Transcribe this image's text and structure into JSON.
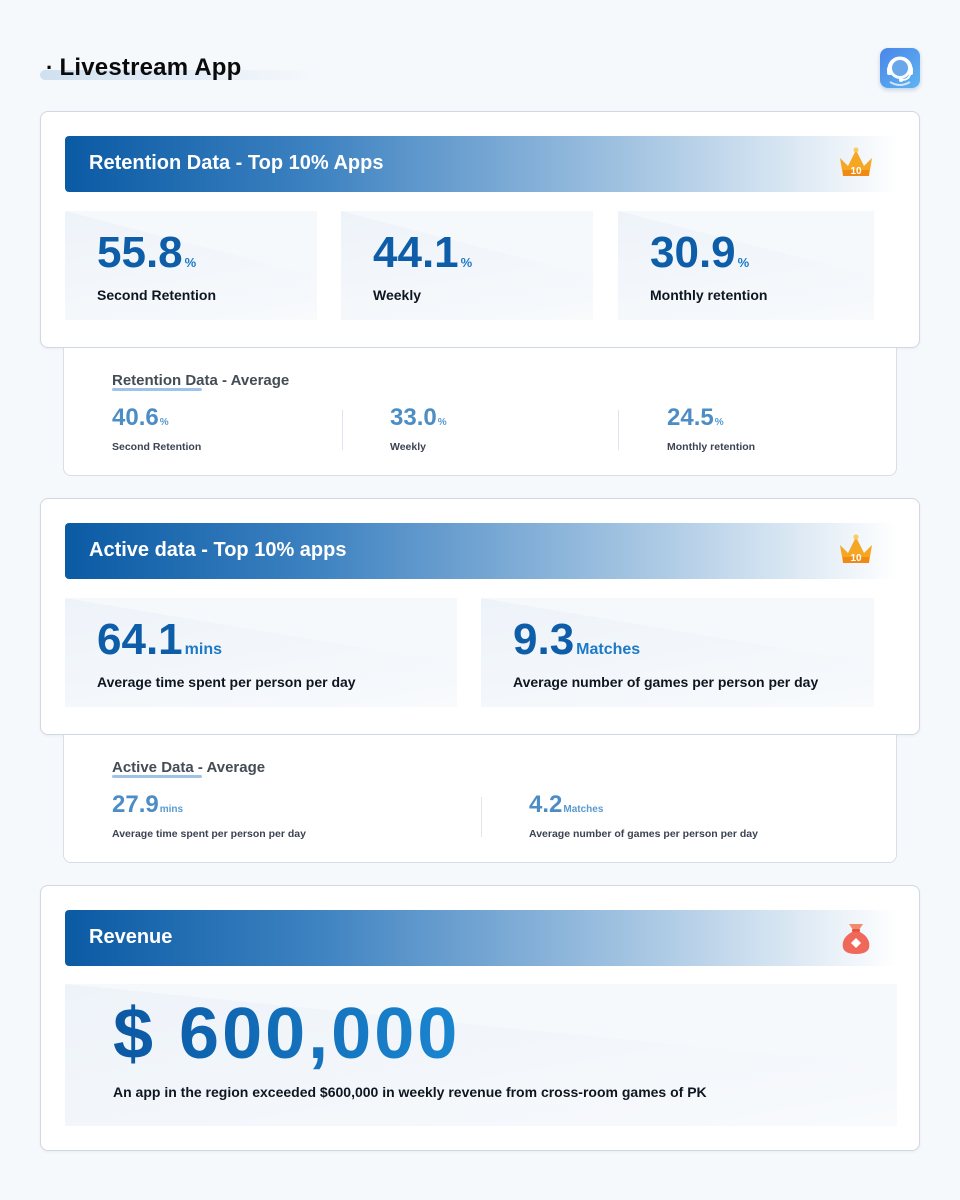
{
  "header": {
    "bullet": "·",
    "title": "Livestream App",
    "logo_icon": "headset-support-icon"
  },
  "colors": {
    "primary_blue": "#0e5da8",
    "average_blue": "#4d8dc6",
    "crown_orange": "#f5a623",
    "moneybag_red": "#f0685a"
  },
  "retention_top": {
    "title": "Retention Data - Top 10% Apps",
    "badge_icon": "crown-top10-icon",
    "badge_text": "10",
    "stats": [
      {
        "value": "55.8",
        "unit": "%",
        "label": "Second Retention"
      },
      {
        "value": "44.1",
        "unit": "%",
        "label": "Weekly"
      },
      {
        "value": "30.9",
        "unit": "%",
        "label": "Monthly retention"
      }
    ]
  },
  "retention_avg": {
    "title": "Retention Data - Average",
    "stats": [
      {
        "value": "40.6",
        "unit": "%",
        "label": "Second Retention"
      },
      {
        "value": "33.0",
        "unit": "%",
        "label": "Weekly"
      },
      {
        "value": "24.5",
        "unit": "%",
        "label": "Monthly retention"
      }
    ]
  },
  "active_top": {
    "title": "Active data - Top 10% apps",
    "badge_icon": "crown-top10-icon",
    "badge_text": "10",
    "stats": [
      {
        "value": "64.1",
        "unit": "mins",
        "label": "Average time spent per person per day"
      },
      {
        "value": "9.3",
        "unit": "Matches",
        "label": "Average number of games per person per day"
      }
    ]
  },
  "active_avg": {
    "title": "Active Data - Average",
    "stats": [
      {
        "value": "27.9",
        "unit": "mins",
        "label": "Average time spent per person per day"
      },
      {
        "value": "4.2",
        "unit": "Matches",
        "label": "Average number of games per person per day"
      }
    ]
  },
  "revenue": {
    "title": "Revenue",
    "badge_icon": "money-bag-icon",
    "value": "$ 600,000",
    "description": "An app in the region exceeded $600,000 in weekly revenue from cross-room games of PK"
  }
}
